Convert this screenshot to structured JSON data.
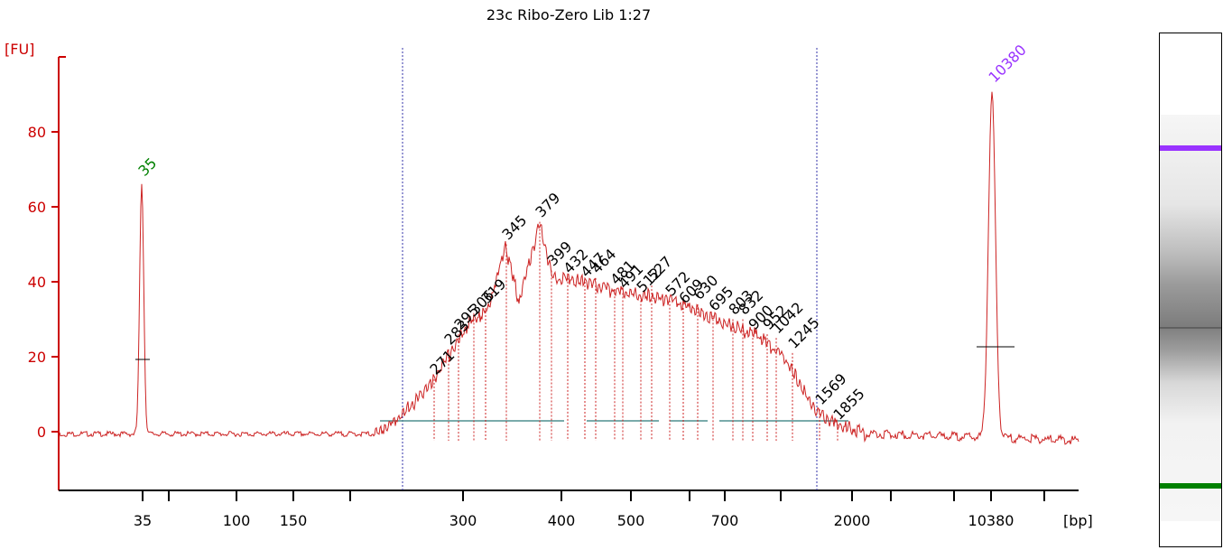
{
  "chart_data": {
    "type": "line",
    "title": "23c Ribo-Zero Lib 1:27",
    "ylabel": "[FU]",
    "xlabel": "[bp]",
    "ylim": [
      -15,
      100
    ],
    "yticks": [
      0,
      20,
      40,
      60,
      80
    ],
    "xticks": [
      "35",
      "",
      "100",
      "150",
      "",
      "300",
      "400",
      "500",
      "",
      "700",
      "",
      "2000",
      "",
      "",
      "10380",
      ""
    ],
    "marker_lower": {
      "label": "35",
      "size_bp": 35,
      "height_fu": 67
    },
    "marker_upper": {
      "label": "10380",
      "size_bp": 10380,
      "height_fu": 92
    },
    "peaks": [
      {
        "label": "271",
        "fu": 14
      },
      {
        "label": "283",
        "fu": 22
      },
      {
        "label": "295",
        "fu": 26
      },
      {
        "label": "306",
        "fu": 30
      },
      {
        "label": "319",
        "fu": 33
      },
      {
        "label": "345",
        "fu": 50
      },
      {
        "label": "379",
        "fu": 56
      },
      {
        "label": "399",
        "fu": 43
      },
      {
        "label": "432",
        "fu": 41
      },
      {
        "label": "447",
        "fu": 40
      },
      {
        "label": "464",
        "fu": 41
      },
      {
        "label": "481",
        "fu": 38
      },
      {
        "label": "491",
        "fu": 37
      },
      {
        "label": "512",
        "fu": 36
      },
      {
        "label": "527",
        "fu": 39
      },
      {
        "label": "572",
        "fu": 35
      },
      {
        "label": "609",
        "fu": 33
      },
      {
        "label": "630",
        "fu": 34
      },
      {
        "label": "695",
        "fu": 31
      },
      {
        "label": "803",
        "fu": 30
      },
      {
        "label": "832",
        "fu": 30
      },
      {
        "label": "900",
        "fu": 26
      },
      {
        "label": "952",
        "fu": 26
      },
      {
        "label": "1042",
        "fu": 25
      },
      {
        "label": "1245",
        "fu": 21
      },
      {
        "label": "1569",
        "fu": 6
      },
      {
        "label": "1855",
        "fu": 2
      }
    ]
  },
  "colors": {
    "axis": "#cc0000",
    "trace": "#cc2222",
    "lower_marker": "#008000",
    "upper_marker": "#9933ff",
    "region_lines": "#3333aa",
    "baseline": "#4f8f8f"
  }
}
